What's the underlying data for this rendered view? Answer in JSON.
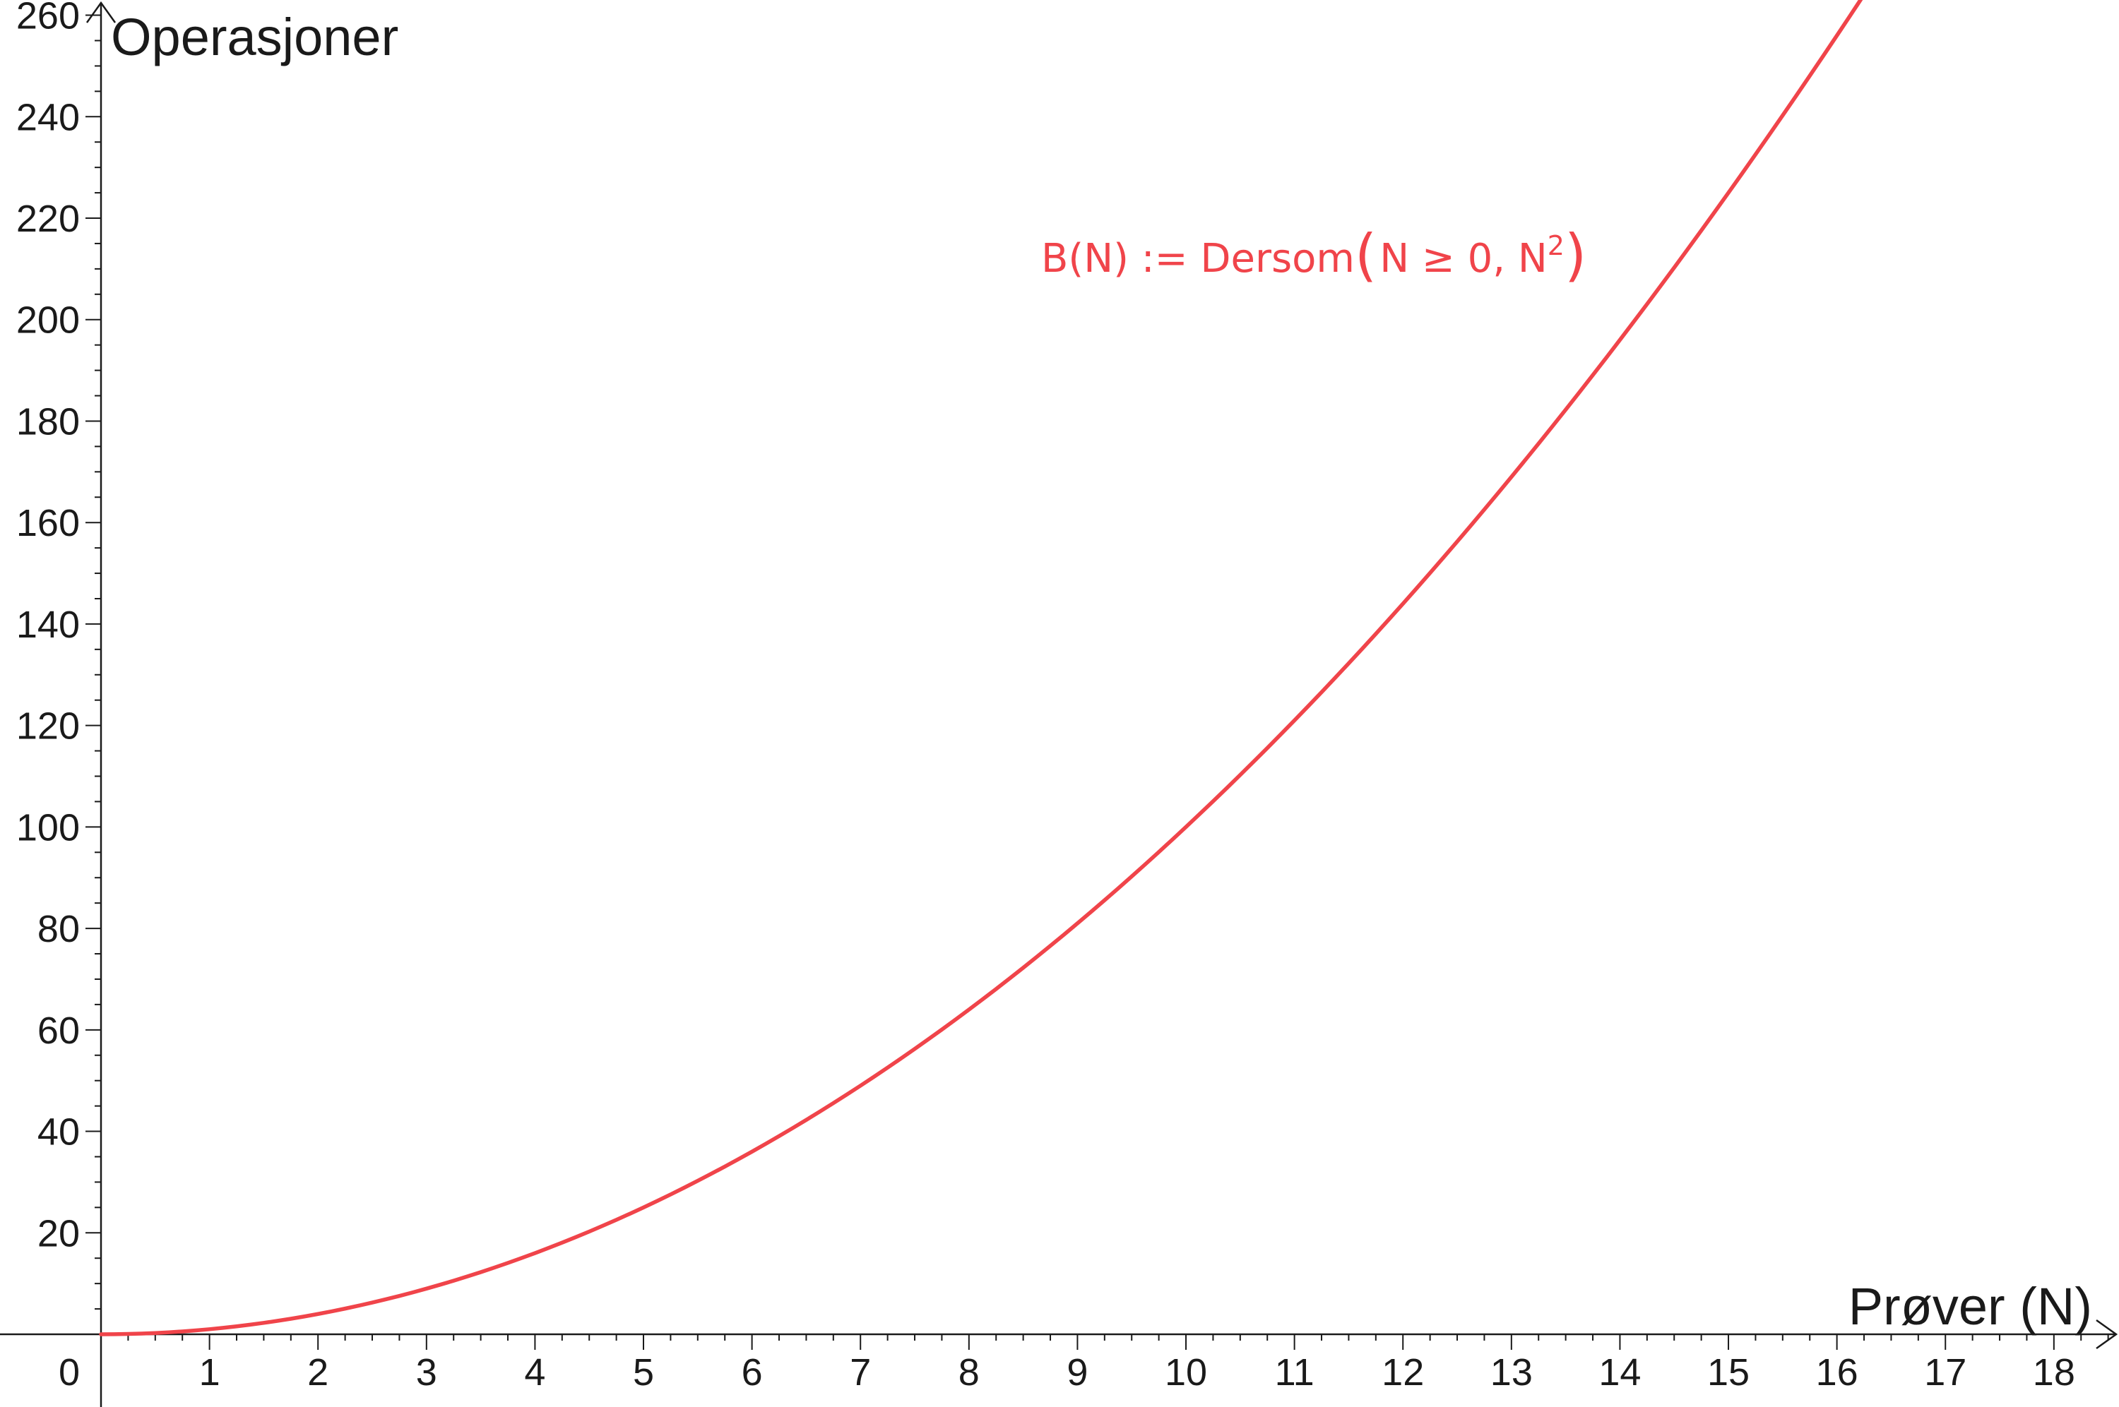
{
  "chart_data": {
    "type": "line",
    "xlabel": "Prøver (N)",
    "ylabel": "Operasjoner",
    "xlim": [
      0,
      18.6
    ],
    "ylim": [
      -14,
      263
    ],
    "origin_label": "0",
    "x_ticks": [
      "1",
      "2",
      "3",
      "4",
      "5",
      "6",
      "7",
      "8",
      "9",
      "10",
      "11",
      "12",
      "13",
      "14",
      "15",
      "16",
      "17",
      "18"
    ],
    "y_ticks": [
      "20",
      "40",
      "60",
      "80",
      "100",
      "120",
      "140",
      "160",
      "180",
      "200",
      "220",
      "240",
      "260"
    ],
    "grid": false,
    "series": [
      {
        "name": "B(N) := Dersom(N ≥ 0, N²)",
        "color": "#f0444a",
        "x": [
          0,
          1,
          2,
          3,
          4,
          5,
          6,
          7,
          8,
          9,
          10,
          11,
          12,
          13,
          14,
          15,
          16,
          16.3
        ],
        "y": [
          0,
          1,
          4,
          9,
          16,
          25,
          36,
          49,
          64,
          81,
          100,
          121,
          144,
          169,
          196,
          225,
          256,
          265.69
        ]
      }
    ],
    "annotation": {
      "prefix": "B(N) := Dersom",
      "args": "N ≥ 0,  N",
      "exponent": "2",
      "color": "#f0444a"
    }
  }
}
